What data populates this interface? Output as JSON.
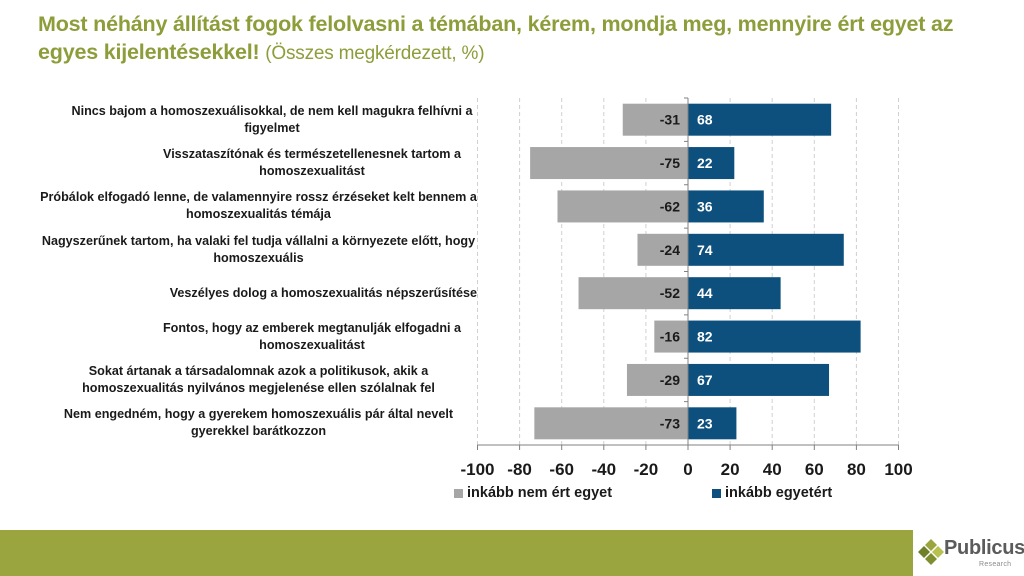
{
  "title": {
    "main": "Most néhány állítást fogok felolvasni a témában, kérem, mondja meg, mennyire ért egyet az egyes kijelentésekkel!",
    "sub": "(Összes megkérdezett, %)"
  },
  "colors": {
    "title": "#8d9d3a",
    "disagree": "#a6a6a6",
    "agree": "#0d4f7d",
    "footer": "#9aa540",
    "grid": "#d0d0d0"
  },
  "chart_data": {
    "type": "bar",
    "orientation": "horizontal-diverging",
    "title": "Most néhány állítást fogok felolvasni a témában, kérem, mondja meg, mennyire ért egyet az egyes kijelentésekkel! (Összes megkérdezett, %)",
    "categories": [
      "Nincs bajom a homoszexuálisokkal, de nem kell magukra felhívni a figyelmet",
      "Visszataszítónak és természetellenesnek tartom a homoszexualitást",
      "Próbálok elfogadó lenne, de valamennyire rossz érzéseket kelt bennem a homoszexualitás témája",
      "Nagyszerűnek tartom, ha valaki fel tudja vállalni a környezete előtt, hogy homoszexuális",
      "Veszélyes dolog a homoszexualitás népszerűsítése",
      "Fontos, hogy az emberek megtanulják elfogadni a homoszexualitást",
      "Sokat ártanak a társadalomnak azok a politikusok, akik a homoszexualitás nyilvános megjelenése ellen szólalnak fel",
      "Nem engedném, hogy a gyerekem homoszexuális pár által nevelt gyerekkel barátkozzon"
    ],
    "series": [
      {
        "name": "inkább nem ért egyet",
        "color": "#a6a6a6",
        "values": [
          -31,
          -75,
          -62,
          -24,
          -52,
          -16,
          -29,
          -73
        ]
      },
      {
        "name": "inkább egyetért",
        "color": "#0d4f7d",
        "values": [
          68,
          22,
          36,
          74,
          44,
          82,
          67,
          23
        ]
      }
    ],
    "xlim": [
      -100,
      100
    ],
    "xticks": [
      "-100",
      "-80",
      "-60",
      "-40",
      "-20",
      "0",
      "20",
      "40",
      "60",
      "80",
      "100"
    ],
    "xtick_values": [
      -100,
      -80,
      -60,
      -40,
      -20,
      0,
      20,
      40,
      60,
      80,
      100
    ],
    "grid": "vertical dashed",
    "legend": "bottom",
    "xlabel": "",
    "ylabel": ""
  },
  "logo": {
    "name": "Publicus",
    "sub": "Research"
  }
}
